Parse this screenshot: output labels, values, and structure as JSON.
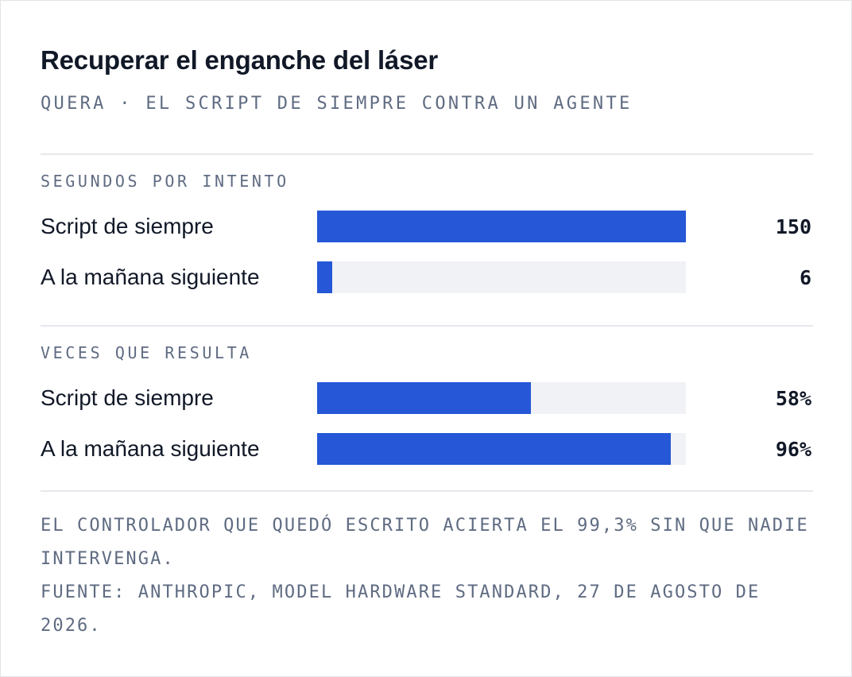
{
  "chart_data": {
    "type": "bar",
    "title": "Recuperar el enganche del láser",
    "subtitle": "QUERA · EL SCRIPT DE SIEMPRE CONTRA UN AGENTE",
    "panels": [
      {
        "label": "SEGUNDOS POR INTENTO",
        "categories": [
          "Script de siempre",
          "A la mañana siguiente"
        ],
        "values": [
          150,
          6
        ],
        "value_labels": [
          "150",
          "6"
        ],
        "xlim": [
          0,
          150
        ]
      },
      {
        "label": "VECES QUE RESULTA",
        "categories": [
          "Script de siempre",
          "A la mañana siguiente"
        ],
        "values": [
          58,
          96
        ],
        "value_labels": [
          "58%",
          "96%"
        ],
        "xlim": [
          0,
          100
        ]
      }
    ],
    "grid": false,
    "colors": {
      "bar": "#2557d6",
      "track": "#f1f2f6"
    }
  },
  "footnote": {
    "note": "EL CONTROLADOR QUE QUEDÓ ESCRITO ACIERTA EL 99,3% SIN QUE NADIE INTERVENGA.",
    "source": "FUENTE: ANTHROPIC, MODEL HARDWARE STANDARD, 27 DE AGOSTO DE 2026."
  }
}
